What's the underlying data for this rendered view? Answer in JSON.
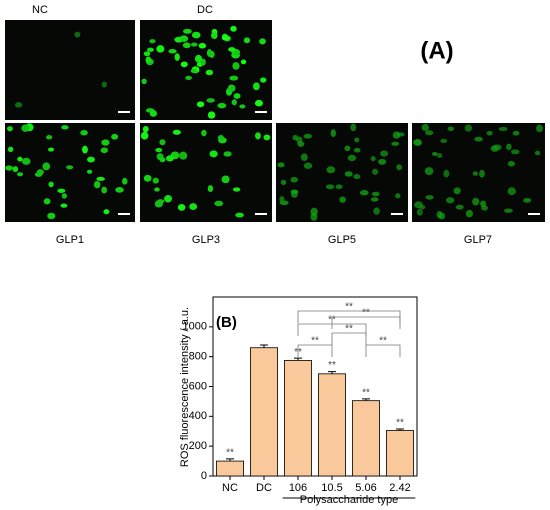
{
  "panel_a": {
    "label": "(A)",
    "images": [
      {
        "label": "NC"
      },
      {
        "label": "DC"
      },
      {
        "label": "GLP1"
      },
      {
        "label": "GLP3"
      },
      {
        "label": "GLP5"
      },
      {
        "label": "GLP7"
      }
    ]
  },
  "chart_data": {
    "type": "bar",
    "panel_label": "(B)",
    "y_label": "ROS fluorescence intensity / a.u.",
    "x_label": "Polysaccharide type",
    "categories": [
      "NC",
      "DC",
      "106",
      "10.5",
      "5.06",
      "2.42"
    ],
    "values": [
      100,
      860,
      775,
      685,
      505,
      305
    ],
    "errors": [
      15,
      18,
      15,
      15,
      12,
      10
    ],
    "color": "#f9c89b",
    "ylim": [
      0,
      1200
    ],
    "yticks": [
      0,
      200,
      400,
      600,
      800,
      1000
    ],
    "bar_labels": [
      "**",
      null,
      "**",
      "**",
      "**",
      "**"
    ],
    "comparisons": [
      {
        "between": [
          "106",
          "10.5"
        ],
        "label": "**"
      },
      {
        "between": [
          "5.06",
          "2.42"
        ],
        "label": "**"
      },
      {
        "between": [
          "10.5",
          "5.06"
        ],
        "label": "**"
      },
      {
        "between": [
          "106",
          "5.06"
        ],
        "label": "**"
      },
      {
        "between": [
          "10.5",
          "2.42"
        ],
        "label": "**"
      },
      {
        "between": [
          "106",
          "2.42"
        ],
        "label": "**"
      }
    ]
  }
}
